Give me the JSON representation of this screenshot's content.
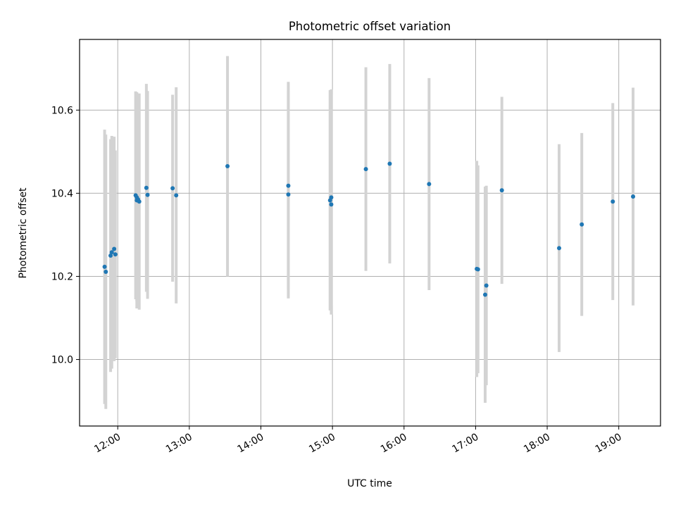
{
  "chart_data": {
    "type": "scatter",
    "title": "Photometric offset variation",
    "xlabel": "UTC time",
    "ylabel": "Photometric offset",
    "x_tick_labels": [
      "12:00",
      "13:00",
      "14:00",
      "15:00",
      "16:00",
      "17:00",
      "18:00",
      "19:00"
    ],
    "y_tick_labels": [
      "10.0",
      "10.2",
      "10.4",
      "10.6"
    ],
    "y_ticks": [
      10.0,
      10.2,
      10.4,
      10.6
    ],
    "xlim": [
      "11:28",
      "19:35"
    ],
    "ylim": [
      9.84,
      10.77
    ],
    "grid": true,
    "point_color": "#1f77b4",
    "errorbar_color": "#d3d3d3",
    "points": [
      {
        "x": "11:49",
        "y": 10.223,
        "err": 0.33
      },
      {
        "x": "11:50",
        "y": 10.211,
        "err": 0.33
      },
      {
        "x": "11:54",
        "y": 10.25,
        "err": 0.28
      },
      {
        "x": "11:55",
        "y": 10.258,
        "err": 0.28
      },
      {
        "x": "11:57",
        "y": 10.266,
        "err": 0.27
      },
      {
        "x": "11:58",
        "y": 10.253,
        "err": 0.25
      },
      {
        "x": "12:15",
        "y": 10.395,
        "err": 0.25
      },
      {
        "x": "12:16",
        "y": 10.39,
        "err": 0.25
      },
      {
        "x": "12:16",
        "y": 10.383,
        "err": 0.26
      },
      {
        "x": "12:17",
        "y": 10.385,
        "err": 0.25
      },
      {
        "x": "12:18",
        "y": 10.38,
        "err": 0.26
      },
      {
        "x": "12:24",
        "y": 10.413,
        "err": 0.25
      },
      {
        "x": "12:25",
        "y": 10.396,
        "err": 0.25
      },
      {
        "x": "12:46",
        "y": 10.412,
        "err": 0.225
      },
      {
        "x": "12:49",
        "y": 10.395,
        "err": 0.26
      },
      {
        "x": "13:32",
        "y": 10.465,
        "err": 0.265
      },
      {
        "x": "14:23",
        "y": 10.418,
        "err": 0.25
      },
      {
        "x": "14:23",
        "y": 10.397,
        "err": 0.25
      },
      {
        "x": "14:58",
        "y": 10.383,
        "err": 0.265
      },
      {
        "x": "14:59",
        "y": 10.373,
        "err": 0.265
      },
      {
        "x": "14:59",
        "y": 10.39,
        "err": 0.26
      },
      {
        "x": "15:28",
        "y": 10.458,
        "err": 0.245
      },
      {
        "x": "15:48",
        "y": 10.471,
        "err": 0.24
      },
      {
        "x": "16:21",
        "y": 10.422,
        "err": 0.255
      },
      {
        "x": "17:01",
        "y": 10.218,
        "err": 0.26
      },
      {
        "x": "17:02",
        "y": 10.217,
        "err": 0.25
      },
      {
        "x": "17:08",
        "y": 10.156,
        "err": 0.26
      },
      {
        "x": "17:09",
        "y": 10.178,
        "err": 0.24
      },
      {
        "x": "17:22",
        "y": 10.407,
        "err": 0.225
      },
      {
        "x": "18:10",
        "y": 10.268,
        "err": 0.25
      },
      {
        "x": "18:29",
        "y": 10.325,
        "err": 0.22
      },
      {
        "x": "18:55",
        "y": 10.38,
        "err": 0.237
      },
      {
        "x": "19:12",
        "y": 10.392,
        "err": 0.262
      }
    ]
  }
}
